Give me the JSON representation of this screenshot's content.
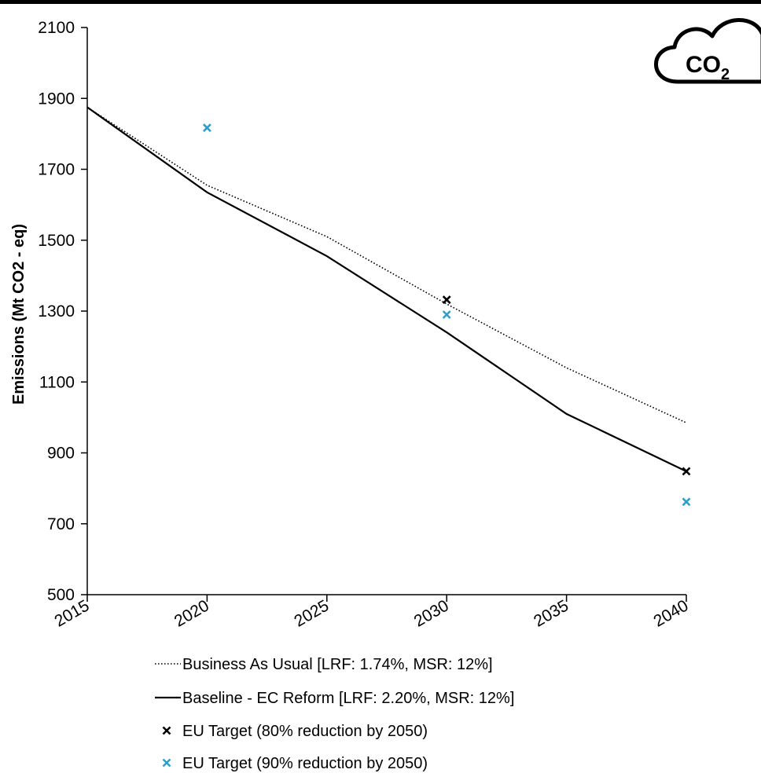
{
  "chart_data": {
    "type": "line",
    "ylabel": "Emissions (Mt CO2 - eq)",
    "xlim": [
      2015,
      2040
    ],
    "ylim": [
      500,
      2100
    ],
    "x_ticks": [
      "2015",
      "2020",
      "2025",
      "2030",
      "2035",
      "2040"
    ],
    "y_ticks": [
      "500",
      "700",
      "900",
      "1100",
      "1300",
      "1500",
      "1700",
      "1900",
      "2100"
    ],
    "grid": false,
    "legend_position": "bottom",
    "series": [
      {
        "name": "Business As Usual [LRF: 1.74%, MSR: 12%]",
        "style": "dotted",
        "color": "#000000",
        "x": [
          2015,
          2020,
          2025,
          2030,
          2035,
          2040
        ],
        "y": [
          1875,
          1655,
          1510,
          1320,
          1140,
          985
        ]
      },
      {
        "name": "Baseline - EC Reform [LRF: 2.20%, MSR: 12%]",
        "style": "solid",
        "color": "#000000",
        "x": [
          2015,
          2020,
          2025,
          2030,
          2035,
          2040
        ],
        "y": [
          1875,
          1635,
          1455,
          1240,
          1010,
          848
        ]
      },
      {
        "name": "EU Target (80% reduction by 2050)",
        "style": "marker",
        "color": "#000000",
        "x": [
          2030,
          2040
        ],
        "y": [
          1332,
          848
        ]
      },
      {
        "name": "EU Target (90% reduction by 2050)",
        "style": "marker",
        "color": "#2e9fc9",
        "x": [
          2020,
          2030,
          2040
        ],
        "y": [
          1817,
          1290,
          762
        ]
      }
    ]
  },
  "badge": {
    "icon": "cloud-icon",
    "text": "CO",
    "subscript": "2"
  }
}
